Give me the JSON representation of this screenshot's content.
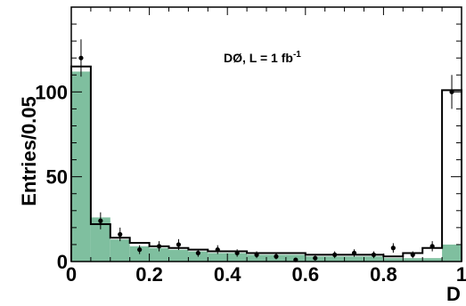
{
  "chart_data": {
    "type": "bar",
    "title": "",
    "annotation": {
      "main": "DØ, L = 1 fb",
      "superscript": "-1"
    },
    "xlabel": "D",
    "ylabel": "Entries/0.05",
    "xlim": [
      0,
      1
    ],
    "ylim": [
      0,
      150
    ],
    "x_ticks": [
      0,
      0.2,
      0.4,
      0.6,
      0.8,
      1
    ],
    "x_tick_labels": [
      "0",
      "0.2",
      "0.4",
      "0.6",
      "0.8",
      "1"
    ],
    "y_ticks": [
      0,
      50,
      100
    ],
    "y_tick_labels": [
      "0",
      "50",
      "100"
    ],
    "bin_edges": [
      0,
      0.05,
      0.1,
      0.15,
      0.2,
      0.25,
      0.3,
      0.35,
      0.4,
      0.45,
      0.5,
      0.55,
      0.6,
      0.65,
      0.7,
      0.75,
      0.8,
      0.85,
      0.9,
      0.95,
      1.0
    ],
    "series": [
      {
        "kind": "filled-histogram",
        "color": "#7fbf9f",
        "values": [
          112,
          26,
          13,
          9,
          8,
          7,
          6,
          5,
          5,
          4,
          4,
          4,
          3,
          3,
          3,
          3,
          2,
          2,
          2,
          10
        ]
      },
      {
        "kind": "outline-histogram",
        "color": "#000000",
        "values": [
          115,
          22,
          14,
          11,
          9,
          8,
          7,
          6,
          6,
          5,
          5,
          5,
          4,
          4,
          4,
          4,
          3,
          5,
          8,
          101
        ]
      },
      {
        "kind": "points-with-errors",
        "color": "#000000",
        "x": [
          0.025,
          0.075,
          0.125,
          0.175,
          0.225,
          0.275,
          0.325,
          0.375,
          0.425,
          0.475,
          0.525,
          0.575,
          0.625,
          0.675,
          0.725,
          0.775,
          0.825,
          0.875,
          0.925,
          0.975
        ],
        "y": [
          120,
          24,
          16,
          7,
          9,
          10,
          5,
          7,
          5,
          4,
          3,
          1,
          2,
          4,
          5,
          4,
          8,
          4,
          9,
          100
        ],
        "err": [
          11,
          5,
          4,
          2.6,
          3,
          3.2,
          2.2,
          2.6,
          2.2,
          2,
          1.7,
          1,
          1.4,
          2,
          2.2,
          2,
          2.8,
          2,
          3,
          10
        ]
      }
    ],
    "grid": false,
    "legend": "none"
  }
}
